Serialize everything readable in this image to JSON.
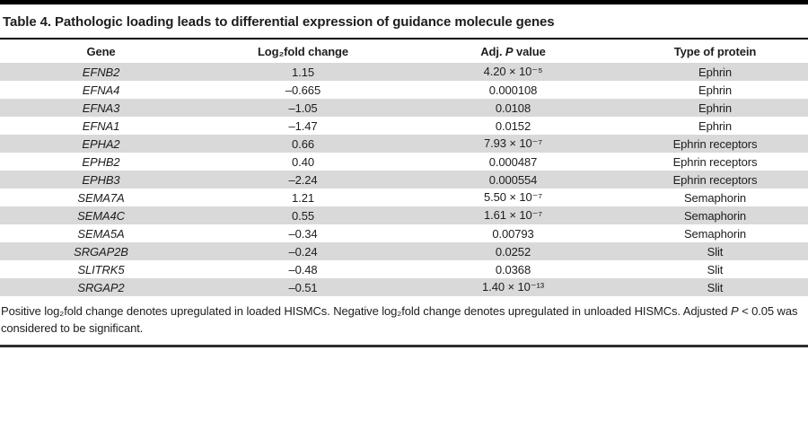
{
  "title": "Table 4. Pathologic loading leads to differential expression of guidance molecule genes",
  "columns": {
    "gene": "Gene",
    "log2fc": "Log₂fold change",
    "adj_p_pre": "Adj. ",
    "adj_p_italic": "P",
    "adj_p_post": " value",
    "type": "Type of protein"
  },
  "rows": [
    {
      "gene": "EFNB2",
      "log2fc": "1.15",
      "adj_p": "4.20 × 10⁻⁵",
      "type": "Ephrin"
    },
    {
      "gene": "EFNA4",
      "log2fc": "–0.665",
      "adj_p": "0.000108",
      "type": "Ephrin"
    },
    {
      "gene": "EFNA3",
      "log2fc": "–1.05",
      "adj_p": "0.0108",
      "type": "Ephrin"
    },
    {
      "gene": "EFNA1",
      "log2fc": "–1.47",
      "adj_p": "0.0152",
      "type": "Ephrin"
    },
    {
      "gene": "EPHA2",
      "log2fc": "0.66",
      "adj_p": "7.93 × 10⁻⁷",
      "type": "Ephrin receptors"
    },
    {
      "gene": "EPHB2",
      "log2fc": "0.40",
      "adj_p": "0.000487",
      "type": "Ephrin receptors"
    },
    {
      "gene": "EPHB3",
      "log2fc": "–2.24",
      "adj_p": "0.000554",
      "type": "Ephrin receptors"
    },
    {
      "gene": "SEMA7A",
      "log2fc": "1.21",
      "adj_p": "5.50 × 10⁻⁷",
      "type": "Semaphorin"
    },
    {
      "gene": "SEMA4C",
      "log2fc": "0.55",
      "adj_p": "1.61 × 10⁻⁷",
      "type": "Semaphorin"
    },
    {
      "gene": "SEMA5A",
      "log2fc": "–0.34",
      "adj_p": "0.00793",
      "type": "Semaphorin"
    },
    {
      "gene": "SRGAP2B",
      "log2fc": "–0.24",
      "adj_p": "0.0252",
      "type": "Slit"
    },
    {
      "gene": "SLITRK5",
      "log2fc": "–0.48",
      "adj_p": "0.0368",
      "type": "Slit"
    },
    {
      "gene": "SRGAP2",
      "log2fc": "–0.51",
      "adj_p": "1.40 × 10⁻¹³",
      "type": "Slit"
    }
  ],
  "footnote": {
    "line1_part1": "Positive log₂fold change denotes upregulated in loaded HISMCs. Negative log₂fold change denotes upregulated in unloaded HISMCs. Adjusted ",
    "line1_p_italic": "P",
    "line1_part2": " < 0.05 was",
    "line2": "considered to be significant."
  },
  "colors": {
    "row_stripe": "#d9d9d9",
    "rule_black": "#000000",
    "bottom_rule": "#2e2e2e",
    "text": "#1d1d1b"
  }
}
